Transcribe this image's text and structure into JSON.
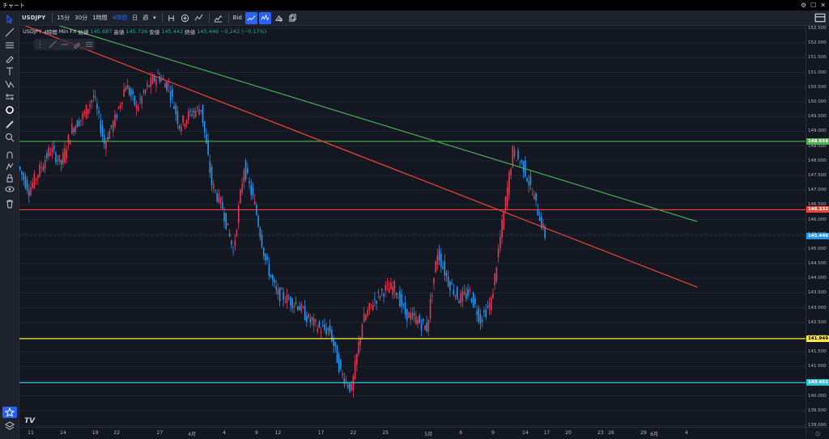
{
  "window": {
    "title": "チャート",
    "buttons": [
      "⚙",
      "☐",
      "✕"
    ]
  },
  "toolbar": {
    "symbol": "USDJPY",
    "intervals": [
      "15分",
      "30分",
      "1時間",
      "4時間",
      "日",
      "週"
    ],
    "active_interval": "4時間",
    "bid_label": "Bid"
  },
  "legend": {
    "symbol": "USDJPY",
    "interval": "4時間",
    "source": "Min FX",
    "open_label": "始値",
    "open": "145.687",
    "high_label": "高値",
    "high": "145.726",
    "low_label": "安値",
    "low": "145.442",
    "close_label": "終値",
    "close": "145.446",
    "change": "−0.242 (−0.17%)"
  },
  "colors": {
    "background": "#131722",
    "up": "#e53950",
    "down": "#2196f3",
    "green_line": "#4caf50",
    "red_line": "#f44336",
    "yellow_line": "#ffeb3b",
    "cyan_line": "#26c6da"
  },
  "price_axis": {
    "ticks": [
      "152.500",
      "152.000",
      "151.500",
      "151.000",
      "150.500",
      "150.000",
      "149.500",
      "149.000",
      "148.500",
      "148.000",
      "147.500",
      "147.000",
      "146.500",
      "146.000",
      "145.500",
      "145.000",
      "144.500",
      "144.000",
      "143.500",
      "143.000",
      "142.500",
      "142.000",
      "141.500",
      "141.000",
      "140.500",
      "140.000",
      "139.500",
      "139.000"
    ],
    "level_labels": [
      {
        "value": "148.658",
        "color": "#4caf50"
      },
      {
        "value": "146.332",
        "color": "#f44336"
      },
      {
        "value": "145.446",
        "color": "#2196f3"
      },
      {
        "value": "141.949",
        "color": "#ffeb3b"
      },
      {
        "value": "140.451",
        "color": "#26c6da"
      }
    ]
  },
  "time_axis": {
    "ticks": [
      "11",
      "14",
      "19",
      "22",
      "27",
      "4月",
      "4",
      "9",
      "12",
      "17",
      "22",
      "25",
      "5月",
      "6",
      "9",
      "14",
      "17",
      "20",
      "23",
      "26",
      "29",
      "6月",
      "4"
    ]
  },
  "chart_data": {
    "type": "candlestick",
    "symbol": "USDJPY",
    "interval": "4時間",
    "ylim": [
      139.0,
      152.7
    ],
    "horizontal_lines": [
      148.658,
      146.332,
      141.949,
      140.451
    ],
    "last_price": 145.446,
    "trendlines": [
      {
        "color": "green",
        "from": {
          "x": "03-10",
          "y": 153.0
        },
        "to": {
          "x": "06-05",
          "y": 145.93
        }
      },
      {
        "color": "red",
        "from": {
          "x": "03-07",
          "y": 152.8
        },
        "to": {
          "x": "06-05",
          "y": 143.7
        }
      }
    ],
    "path_points": [
      {
        "x": "03-10",
        "y": 147.8
      },
      {
        "x": "03-11",
        "y": 147.0
      },
      {
        "x": "03-13",
        "y": 148.4
      },
      {
        "x": "03-14",
        "y": 147.9
      },
      {
        "x": "03-17",
        "y": 149.1
      },
      {
        "x": "03-18",
        "y": 149.5
      },
      {
        "x": "03-19",
        "y": 150.2
      },
      {
        "x": "03-20",
        "y": 148.6
      },
      {
        "x": "03-21",
        "y": 149.4
      },
      {
        "x": "03-24",
        "y": 150.6
      },
      {
        "x": "03-25",
        "y": 149.8
      },
      {
        "x": "03-26",
        "y": 150.5
      },
      {
        "x": "03-27",
        "y": 150.9
      },
      {
        "x": "03-28",
        "y": 150.5
      },
      {
        "x": "03-31",
        "y": 149.2
      },
      {
        "x": "04-01",
        "y": 149.6
      },
      {
        "x": "04-02",
        "y": 149.8
      },
      {
        "x": "04-03",
        "y": 147.2
      },
      {
        "x": "04-04",
        "y": 146.4
      },
      {
        "x": "04-07",
        "y": 144.9
      },
      {
        "x": "04-08",
        "y": 147.8
      },
      {
        "x": "04-09",
        "y": 146.5
      },
      {
        "x": "04-10",
        "y": 144.6
      },
      {
        "x": "04-11",
        "y": 143.5
      },
      {
        "x": "04-14",
        "y": 143.3
      },
      {
        "x": "04-15",
        "y": 143.1
      },
      {
        "x": "04-16",
        "y": 142.6
      },
      {
        "x": "04-17",
        "y": 142.3
      },
      {
        "x": "04-18",
        "y": 142.2
      },
      {
        "x": "04-21",
        "y": 140.8
      },
      {
        "x": "04-22",
        "y": 140.2
      },
      {
        "x": "04-23",
        "y": 142.5
      },
      {
        "x": "04-24",
        "y": 143.2
      },
      {
        "x": "04-25",
        "y": 143.6
      },
      {
        "x": "04-28",
        "y": 143.7
      },
      {
        "x": "04-29",
        "y": 142.8
      },
      {
        "x": "04-30",
        "y": 142.6
      },
      {
        "x": "05-01",
        "y": 142.3
      },
      {
        "x": "05-02",
        "y": 144.9
      },
      {
        "x": "05-05",
        "y": 143.9
      },
      {
        "x": "05-06",
        "y": 143.3
      },
      {
        "x": "05-07",
        "y": 143.5
      },
      {
        "x": "05-08",
        "y": 142.6
      },
      {
        "x": "05-09",
        "y": 143.2
      },
      {
        "x": "05-12",
        "y": 145.8
      },
      {
        "x": "05-13",
        "y": 148.3
      },
      {
        "x": "05-14",
        "y": 147.8
      },
      {
        "x": "05-15",
        "y": 146.7
      },
      {
        "x": "05-16",
        "y": 145.45
      }
    ]
  }
}
